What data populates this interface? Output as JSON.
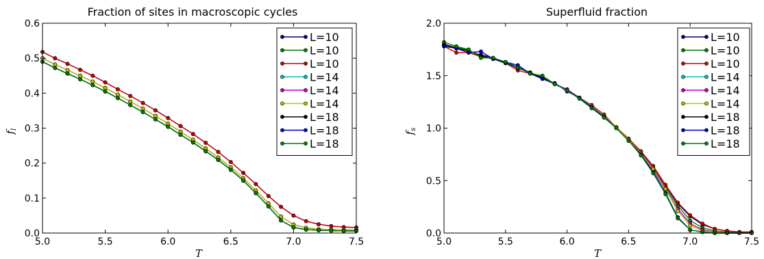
{
  "chart_data": [
    {
      "type": "line",
      "title": "Fraction of sites in macroscopic cycles",
      "xlabel": "T",
      "ylabel": "f_l",
      "ylabel_main": "f",
      "ylabel_sub": "l",
      "xlim": [
        5.0,
        7.5
      ],
      "ylim": [
        0.0,
        0.6
      ],
      "xticks": [
        "5.0",
        "5.5",
        "6.0",
        "6.5",
        "7.0",
        "7.5"
      ],
      "xtick_values": [
        5.0,
        5.5,
        6.0,
        6.5,
        7.0,
        7.5
      ],
      "yticks": [
        "0.0",
        "0.1",
        "0.2",
        "0.3",
        "0.4",
        "0.5",
        "0.6"
      ],
      "ytick_values": [
        0.0,
        0.1,
        0.2,
        0.3,
        0.4,
        0.5,
        0.6
      ],
      "grid": false,
      "legend_position": "top-right",
      "x": [
        5.0,
        5.1,
        5.2,
        5.3,
        5.4,
        5.5,
        5.6,
        5.7,
        5.8,
        5.9,
        6.0,
        6.1,
        6.2,
        6.3,
        6.4,
        6.5,
        6.6,
        6.7,
        6.8,
        6.9,
        7.0,
        7.1,
        7.2,
        7.3,
        7.4,
        7.5
      ],
      "series": [
        {
          "name": "L=10",
          "color": "#00007f",
          "values": [
            0.518,
            0.5,
            0.484,
            0.467,
            0.45,
            0.431,
            0.411,
            0.392,
            0.372,
            0.351,
            0.329,
            0.306,
            0.283,
            0.258,
            0.232,
            0.203,
            0.172,
            0.14,
            0.106,
            0.075,
            0.05,
            0.034,
            0.025,
            0.02,
            0.017,
            0.016
          ]
        },
        {
          "name": "L=10",
          "color": "#007f00",
          "values": [
            0.49,
            0.472,
            0.456,
            0.44,
            0.423,
            0.405,
            0.386,
            0.366,
            0.346,
            0.325,
            0.304,
            0.281,
            0.259,
            0.234,
            0.209,
            0.181,
            0.15,
            0.114,
            0.076,
            0.036,
            0.016,
            0.01,
            0.008,
            0.007,
            0.006,
            0.006
          ]
        },
        {
          "name": "L=10",
          "color": "#cc0000",
          "values": [
            0.518,
            0.5,
            0.484,
            0.467,
            0.45,
            0.431,
            0.411,
            0.392,
            0.372,
            0.351,
            0.329,
            0.306,
            0.283,
            0.258,
            0.232,
            0.203,
            0.172,
            0.14,
            0.106,
            0.075,
            0.05,
            0.034,
            0.025,
            0.02,
            0.017,
            0.016
          ]
        },
        {
          "name": "L=14",
          "color": "#00bfbf",
          "values": [
            0.5,
            0.482,
            0.466,
            0.45,
            0.433,
            0.415,
            0.396,
            0.376,
            0.356,
            0.335,
            0.313,
            0.29,
            0.267,
            0.242,
            0.216,
            0.188,
            0.157,
            0.122,
            0.085,
            0.047,
            0.024,
            0.015,
            0.011,
            0.01,
            0.009,
            0.009
          ]
        },
        {
          "name": "L=14",
          "color": "#bf00bf",
          "values": [
            0.5,
            0.482,
            0.466,
            0.45,
            0.433,
            0.415,
            0.396,
            0.376,
            0.356,
            0.335,
            0.313,
            0.29,
            0.267,
            0.242,
            0.216,
            0.188,
            0.157,
            0.122,
            0.085,
            0.047,
            0.024,
            0.015,
            0.011,
            0.01,
            0.009,
            0.009
          ]
        },
        {
          "name": "L=14",
          "color": "#bfbf00",
          "values": [
            0.5,
            0.482,
            0.466,
            0.45,
            0.433,
            0.415,
            0.396,
            0.376,
            0.356,
            0.335,
            0.313,
            0.29,
            0.267,
            0.242,
            0.216,
            0.188,
            0.157,
            0.122,
            0.085,
            0.047,
            0.024,
            0.015,
            0.011,
            0.01,
            0.009,
            0.009
          ]
        },
        {
          "name": "L=18",
          "color": "#000000",
          "values": [
            0.49,
            0.472,
            0.456,
            0.44,
            0.423,
            0.405,
            0.386,
            0.366,
            0.346,
            0.325,
            0.304,
            0.281,
            0.259,
            0.234,
            0.209,
            0.181,
            0.15,
            0.114,
            0.076,
            0.036,
            0.016,
            0.01,
            0.008,
            0.007,
            0.006,
            0.006
          ]
        },
        {
          "name": "L=18",
          "color": "#0000cc",
          "values": [
            0.49,
            0.472,
            0.456,
            0.44,
            0.423,
            0.405,
            0.386,
            0.366,
            0.346,
            0.325,
            0.304,
            0.281,
            0.259,
            0.234,
            0.209,
            0.181,
            0.15,
            0.114,
            0.076,
            0.036,
            0.016,
            0.01,
            0.008,
            0.007,
            0.006,
            0.006
          ]
        },
        {
          "name": "L=18",
          "color": "#007f00",
          "values": [
            0.49,
            0.472,
            0.456,
            0.44,
            0.423,
            0.405,
            0.386,
            0.366,
            0.346,
            0.325,
            0.304,
            0.281,
            0.259,
            0.234,
            0.209,
            0.181,
            0.15,
            0.114,
            0.076,
            0.036,
            0.016,
            0.01,
            0.008,
            0.007,
            0.006,
            0.006
          ]
        }
      ]
    },
    {
      "type": "line",
      "title": "Superfluid fraction",
      "xlabel": "T",
      "ylabel": "f_s",
      "ylabel_main": "f",
      "ylabel_sub": "s",
      "xlim": [
        5.0,
        7.5
      ],
      "ylim": [
        0.0,
        2.0
      ],
      "xticks": [
        "5.0",
        "5.5",
        "6.0",
        "6.5",
        "7.0",
        "7.5"
      ],
      "xtick_values": [
        5.0,
        5.5,
        6.0,
        6.5,
        7.0,
        7.5
      ],
      "yticks": [
        "0.0",
        "0.5",
        "1.0",
        "1.5",
        "2.0"
      ],
      "ytick_values": [
        0.0,
        0.5,
        1.0,
        1.5,
        2.0
      ],
      "grid": false,
      "legend_position": "top-right",
      "x": [
        5.0,
        5.1,
        5.2,
        5.3,
        5.4,
        5.5,
        5.6,
        5.7,
        5.8,
        5.9,
        6.0,
        6.1,
        6.2,
        6.3,
        6.4,
        6.5,
        6.6,
        6.7,
        6.8,
        6.9,
        7.0,
        7.1,
        7.2,
        7.3,
        7.4,
        7.5
      ],
      "series": [
        {
          "name": "L=10",
          "color": "#00007f",
          "values": [
            1.79,
            1.76,
            1.72,
            1.7,
            1.67,
            1.63,
            1.58,
            1.53,
            1.48,
            1.42,
            1.36,
            1.29,
            1.21,
            1.12,
            1.01,
            0.89,
            0.77,
            0.62,
            0.44,
            0.28,
            0.16,
            0.08,
            0.04,
            0.02,
            0.01,
            0.01
          ]
        },
        {
          "name": "L=10",
          "color": "#007f00",
          "values": [
            1.8,
            1.77,
            1.74,
            1.69,
            1.66,
            1.63,
            1.58,
            1.52,
            1.47,
            1.42,
            1.36,
            1.29,
            1.2,
            1.11,
            1.0,
            0.88,
            0.76,
            0.6,
            0.42,
            0.26,
            0.12,
            0.05,
            0.02,
            0.01,
            0.0,
            0.0
          ]
        },
        {
          "name": "L=10",
          "color": "#cc0000",
          "values": [
            1.78,
            1.72,
            1.72,
            1.68,
            1.66,
            1.62,
            1.55,
            1.52,
            1.48,
            1.42,
            1.36,
            1.29,
            1.22,
            1.13,
            1.01,
            0.9,
            0.78,
            0.64,
            0.46,
            0.29,
            0.17,
            0.09,
            0.04,
            0.02,
            0.01,
            0.01
          ]
        },
        {
          "name": "L=14",
          "color": "#00bfbf",
          "values": [
            1.79,
            1.76,
            1.73,
            1.69,
            1.66,
            1.62,
            1.57,
            1.53,
            1.48,
            1.42,
            1.37,
            1.29,
            1.21,
            1.12,
            1.01,
            0.89,
            0.75,
            0.6,
            0.41,
            0.23,
            0.09,
            0.03,
            0.01,
            0.0,
            0.0,
            0.0
          ]
        },
        {
          "name": "L=14",
          "color": "#bf00bf",
          "values": [
            1.79,
            1.76,
            1.73,
            1.69,
            1.66,
            1.62,
            1.57,
            1.53,
            1.48,
            1.42,
            1.37,
            1.29,
            1.21,
            1.12,
            1.01,
            0.89,
            0.75,
            0.6,
            0.41,
            0.23,
            0.09,
            0.03,
            0.01,
            0.0,
            0.0,
            0.0
          ]
        },
        {
          "name": "L=14",
          "color": "#bfbf00",
          "values": [
            1.8,
            1.76,
            1.73,
            1.69,
            1.66,
            1.62,
            1.58,
            1.53,
            1.49,
            1.42,
            1.36,
            1.29,
            1.21,
            1.12,
            1.01,
            0.89,
            0.76,
            0.61,
            0.42,
            0.21,
            0.07,
            0.02,
            0.01,
            0.0,
            0.0,
            0.0
          ]
        },
        {
          "name": "L=18",
          "color": "#000000",
          "values": [
            1.8,
            1.76,
            1.74,
            1.69,
            1.66,
            1.62,
            1.58,
            1.53,
            1.48,
            1.42,
            1.36,
            1.29,
            1.2,
            1.11,
            1.0,
            0.88,
            0.75,
            0.58,
            0.38,
            0.15,
            0.03,
            0.01,
            0.0,
            0.0,
            0.0,
            0.0
          ]
        },
        {
          "name": "L=18",
          "color": "#0000cc",
          "values": [
            1.78,
            1.76,
            1.72,
            1.73,
            1.66,
            1.63,
            1.6,
            1.52,
            1.47,
            1.43,
            1.35,
            1.29,
            1.2,
            1.11,
            1.0,
            0.88,
            0.75,
            0.58,
            0.38,
            0.15,
            0.03,
            0.01,
            0.0,
            0.0,
            0.0,
            0.0
          ]
        },
        {
          "name": "L=18",
          "color": "#007f00",
          "values": [
            1.82,
            1.78,
            1.75,
            1.67,
            1.67,
            1.63,
            1.58,
            1.52,
            1.5,
            1.42,
            1.36,
            1.28,
            1.19,
            1.1,
            1.0,
            0.88,
            0.74,
            0.57,
            0.37,
            0.14,
            0.03,
            0.01,
            0.0,
            0.0,
            0.0,
            0.0
          ]
        }
      ]
    }
  ]
}
